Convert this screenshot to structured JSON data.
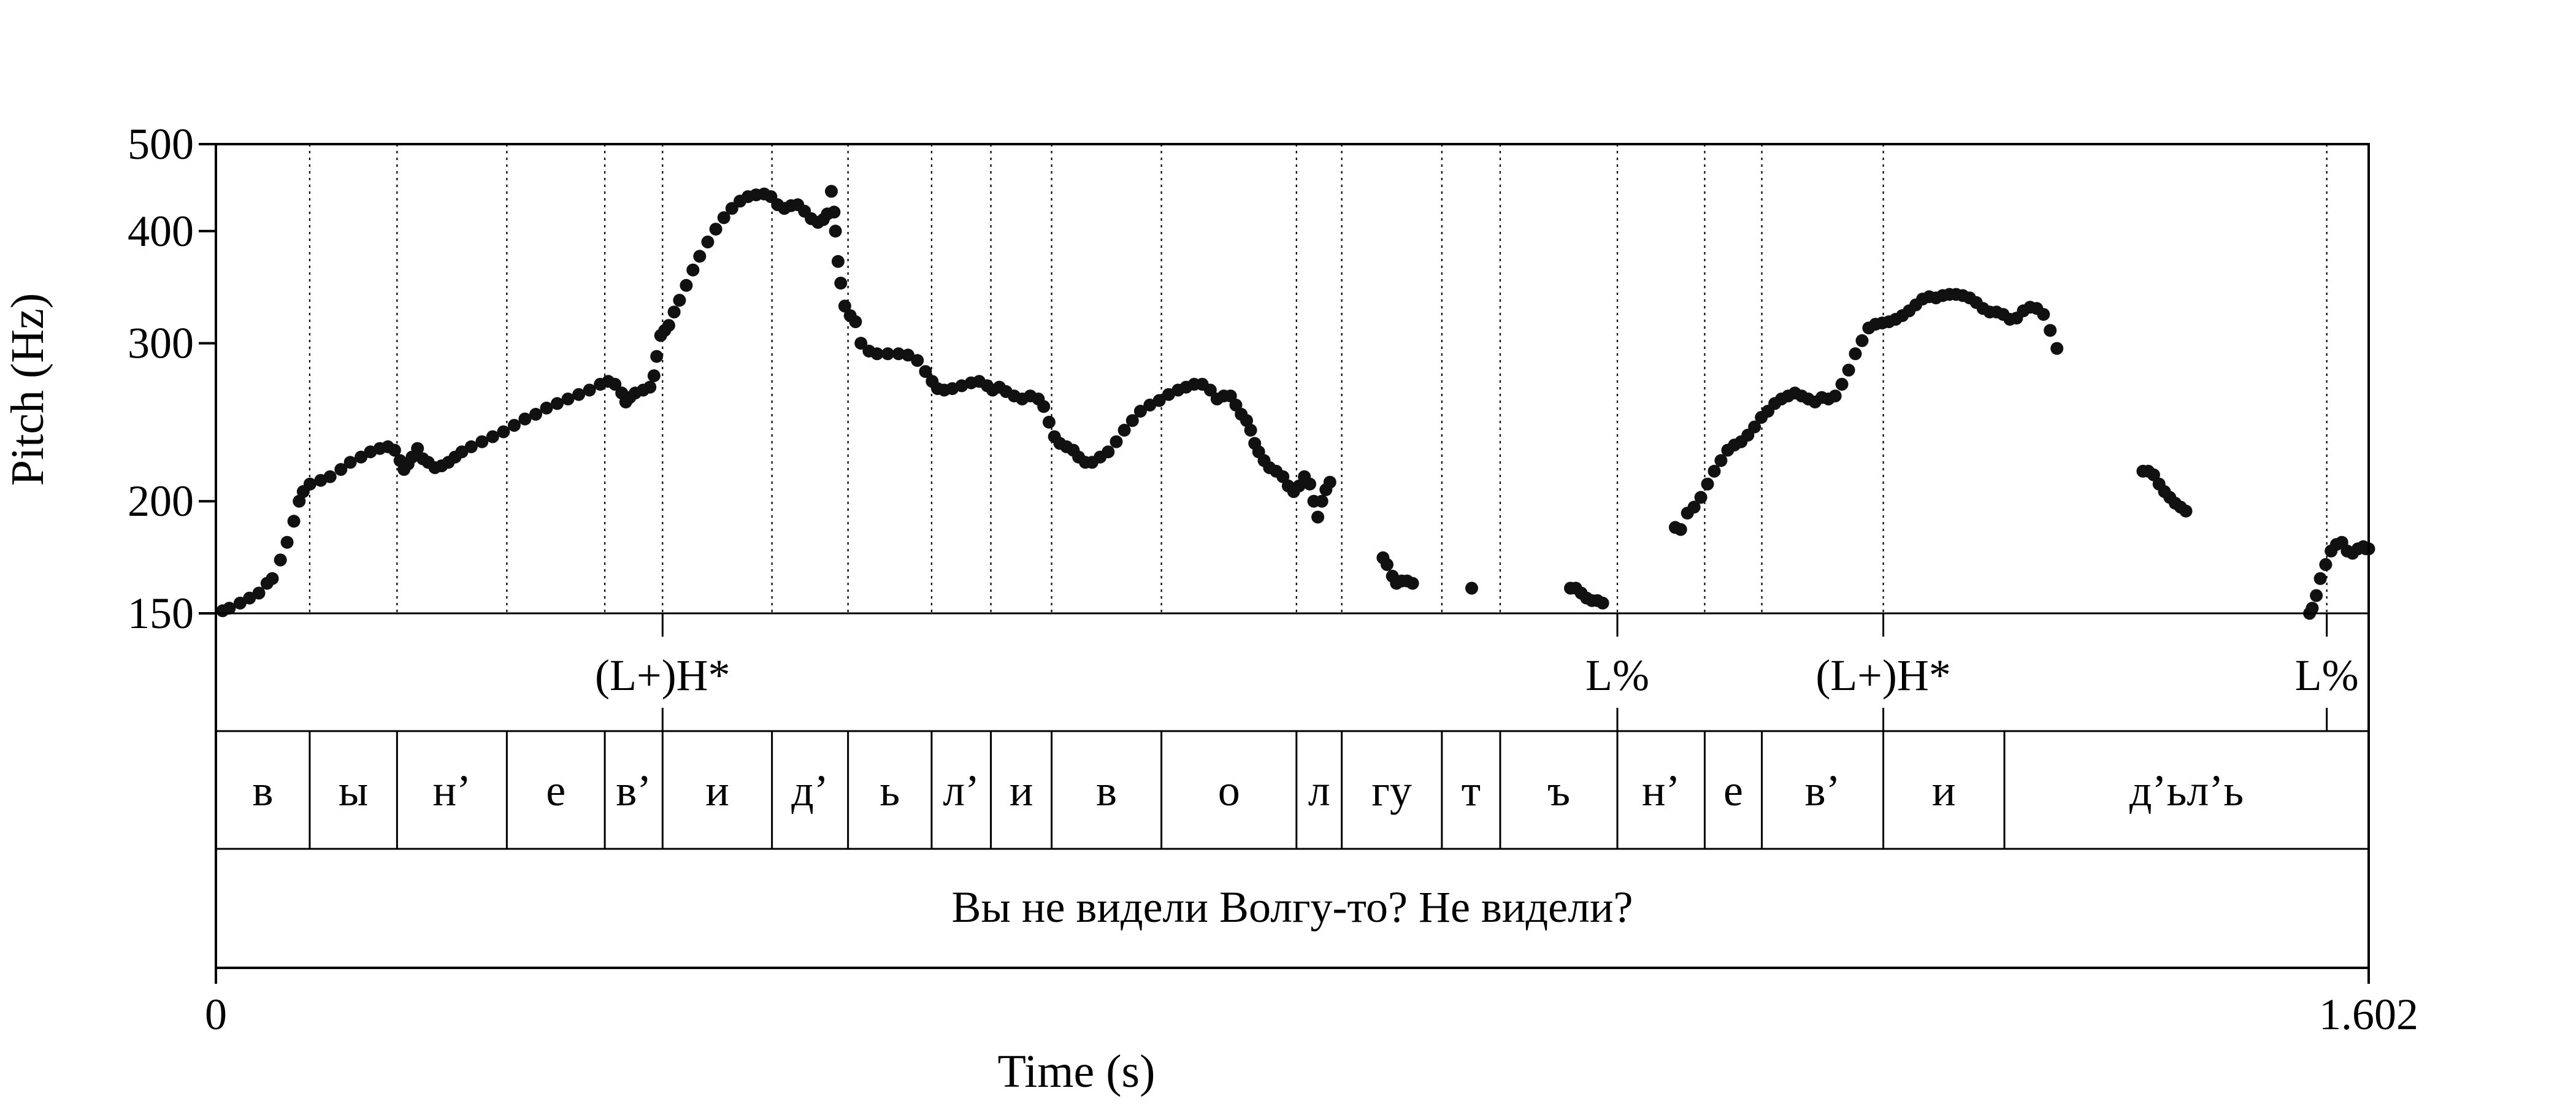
{
  "chart_data": {
    "type": "scatter",
    "title": "",
    "xlabel": "Time (s)",
    "ylabel": "Pitch (Hz)",
    "xlim": [
      0,
      1.602
    ],
    "ylim": [
      150,
      500
    ],
    "y_scale": "log",
    "grid": false,
    "x_ticks": [
      {
        "value": 0,
        "label": "0"
      },
      {
        "value": 1.602,
        "label": "1.602"
      }
    ],
    "y_ticks": [
      {
        "value": 150,
        "label": "150"
      },
      {
        "value": 200,
        "label": "200"
      },
      {
        "value": 300,
        "label": "300"
      },
      {
        "value": 400,
        "label": "400"
      },
      {
        "value": 500,
        "label": "500"
      }
    ],
    "colors": {
      "points": "#111111",
      "boundaries": "#000000"
    },
    "boundaries": [
      0,
      0.0698,
      0.1348,
      0.2165,
      0.2894,
      0.3324,
      0.4138,
      0.4704,
      0.5326,
      0.5767,
      0.6219,
      0.7036,
      0.8041,
      0.8378,
      0.9123,
      0.9557,
      1.0429,
      1.1079,
      1.1504,
      1.2408,
      1.5708,
      1.602
    ],
    "tones": [
      {
        "label": "(L+)H*",
        "time": 0.3324
      },
      {
        "label": "L%",
        "time": 1.0429
      },
      {
        "label": "(L+)H*",
        "time": 1.2408
      },
      {
        "label": "L%",
        "time": 1.5708
      }
    ],
    "phones": [
      {
        "label": "в",
        "start": 0,
        "end": 0.0698
      },
      {
        "label": "ы",
        "start": 0.0698,
        "end": 0.1348
      },
      {
        "label": "н’",
        "start": 0.1348,
        "end": 0.2165
      },
      {
        "label": "е",
        "start": 0.2165,
        "end": 0.2894
      },
      {
        "label": "в’",
        "start": 0.2894,
        "end": 0.3324
      },
      {
        "label": "и",
        "start": 0.3324,
        "end": 0.4138
      },
      {
        "label": "д’",
        "start": 0.4138,
        "end": 0.4704
      },
      {
        "label": "ь",
        "start": 0.4704,
        "end": 0.5326
      },
      {
        "label": "л’",
        "start": 0.5326,
        "end": 0.5767
      },
      {
        "label": "и",
        "start": 0.5767,
        "end": 0.6219
      },
      {
        "label": "в",
        "start": 0.6219,
        "end": 0.7036
      },
      {
        "label": "о",
        "start": 0.7036,
        "end": 0.8041
      },
      {
        "label": "л",
        "start": 0.8041,
        "end": 0.8378
      },
      {
        "label": "гу",
        "start": 0.8378,
        "end": 0.9123
      },
      {
        "label": "т",
        "start": 0.9123,
        "end": 0.9557
      },
      {
        "label": "ъ",
        "start": 0.9557,
        "end": 1.0429
      },
      {
        "label": "н’",
        "start": 1.0429,
        "end": 1.1079
      },
      {
        "label": "е",
        "start": 1.1079,
        "end": 1.1504
      },
      {
        "label": "в’",
        "start": 1.1504,
        "end": 1.2408
      },
      {
        "label": "и",
        "start": 1.2408,
        "end": 1.3309
      },
      {
        "label": "д’ьл’ь",
        "start": 1.3309,
        "end": 1.602
      }
    ],
    "sentence": "Вы не видели Волгу-то? Не видели?",
    "contour": [
      [
        [
          0.005,
          151
        ],
        [
          0.01,
          152
        ],
        [
          0.018,
          154
        ],
        [
          0.025,
          156
        ],
        [
          0.032,
          158
        ],
        [
          0.038,
          162
        ],
        [
          0.042,
          164
        ],
        [
          0.048,
          172
        ],
        [
          0.053,
          180
        ],
        [
          0.058,
          190
        ],
        [
          0.062,
          200
        ],
        [
          0.065,
          205
        ],
        [
          0.07,
          209
        ],
        [
          0.078,
          211
        ],
        [
          0.085,
          213
        ],
        [
          0.093,
          217
        ],
        [
          0.1,
          221
        ],
        [
          0.108,
          224
        ],
        [
          0.115,
          227
        ],
        [
          0.122,
          229
        ],
        [
          0.128,
          230
        ],
        [
          0.133,
          228
        ],
        [
          0.137,
          222
        ],
        [
          0.14,
          217
        ],
        [
          0.143,
          220
        ],
        [
          0.146,
          224
        ],
        [
          0.15,
          229
        ],
        [
          0.154,
          223
        ],
        [
          0.158,
          221
        ],
        [
          0.163,
          218
        ],
        [
          0.168,
          219
        ],
        [
          0.173,
          221
        ],
        [
          0.178,
          224
        ],
        [
          0.183,
          227
        ],
        [
          0.19,
          230
        ],
        [
          0.198,
          233
        ],
        [
          0.206,
          236
        ],
        [
          0.214,
          239
        ],
        [
          0.222,
          243
        ],
        [
          0.23,
          247
        ],
        [
          0.238,
          250
        ],
        [
          0.246,
          254
        ],
        [
          0.254,
          257
        ],
        [
          0.262,
          260
        ],
        [
          0.27,
          263
        ],
        [
          0.278,
          266
        ],
        [
          0.286,
          270
        ],
        [
          0.292,
          272
        ],
        [
          0.297,
          270
        ],
        [
          0.302,
          264
        ],
        [
          0.305,
          258
        ],
        [
          0.308,
          261
        ],
        [
          0.312,
          264
        ],
        [
          0.318,
          266
        ],
        [
          0.323,
          268
        ],
        [
          0.326,
          276
        ],
        [
          0.328,
          290
        ],
        [
          0.331,
          306
        ],
        [
          0.334,
          310
        ],
        [
          0.337,
          314
        ],
        [
          0.341,
          325
        ],
        [
          0.345,
          335
        ],
        [
          0.35,
          348
        ],
        [
          0.355,
          362
        ],
        [
          0.36,
          375
        ],
        [
          0.366,
          389
        ],
        [
          0.372,
          402
        ],
        [
          0.378,
          414
        ],
        [
          0.384,
          424
        ],
        [
          0.39,
          432
        ],
        [
          0.396,
          437
        ],
        [
          0.402,
          439
        ],
        [
          0.408,
          440
        ],
        [
          0.413,
          437
        ],
        [
          0.418,
          428
        ],
        [
          0.423,
          424
        ],
        [
          0.428,
          427
        ],
        [
          0.433,
          428
        ],
        [
          0.438,
          421
        ],
        [
          0.443,
          413
        ],
        [
          0.448,
          409
        ],
        [
          0.452,
          412
        ],
        [
          0.455,
          418
        ],
        [
          0.458,
          443
        ],
        [
          0.46,
          420
        ],
        [
          0.461,
          400
        ],
        [
          0.463,
          370
        ],
        [
          0.465,
          350
        ],
        [
          0.468,
          330
        ],
        [
          0.472,
          322
        ],
        [
          0.476,
          317
        ],
        [
          0.48,
          300
        ],
        [
          0.486,
          294
        ],
        [
          0.492,
          292
        ],
        [
          0.5,
          292
        ],
        [
          0.508,
          292
        ],
        [
          0.515,
          291
        ],
        [
          0.522,
          287
        ],
        [
          0.528,
          279
        ],
        [
          0.533,
          272
        ],
        [
          0.537,
          267
        ],
        [
          0.542,
          266
        ],
        [
          0.548,
          267
        ],
        [
          0.555,
          269
        ],
        [
          0.562,
          271
        ],
        [
          0.568,
          272
        ],
        [
          0.574,
          269
        ],
        [
          0.578,
          266
        ],
        [
          0.583,
          268
        ],
        [
          0.588,
          265
        ],
        [
          0.594,
          262
        ],
        [
          0.6,
          260
        ],
        [
          0.606,
          262
        ],
        [
          0.612,
          260
        ],
        [
          0.616,
          255
        ],
        [
          0.62,
          245
        ],
        [
          0.624,
          236
        ],
        [
          0.628,
          232
        ],
        [
          0.633,
          230
        ],
        [
          0.638,
          228
        ],
        [
          0.642,
          224
        ],
        [
          0.647,
          221
        ],
        [
          0.652,
          221
        ],
        [
          0.658,
          224
        ],
        [
          0.664,
          227
        ],
        [
          0.67,
          233
        ],
        [
          0.676,
          240
        ],
        [
          0.682,
          246
        ],
        [
          0.688,
          252
        ],
        [
          0.695,
          256
        ],
        [
          0.702,
          259
        ],
        [
          0.709,
          263
        ],
        [
          0.716,
          266
        ],
        [
          0.722,
          268
        ],
        [
          0.728,
          270
        ],
        [
          0.734,
          270
        ],
        [
          0.74,
          266
        ],
        [
          0.745,
          260
        ],
        [
          0.75,
          262
        ],
        [
          0.755,
          262
        ],
        [
          0.759,
          256
        ],
        [
          0.763,
          250
        ],
        [
          0.767,
          246
        ],
        [
          0.77,
          240
        ],
        [
          0.773,
          232
        ],
        [
          0.776,
          227
        ],
        [
          0.78,
          222
        ],
        [
          0.784,
          218
        ],
        [
          0.789,
          216
        ],
        [
          0.794,
          213
        ],
        [
          0.798,
          208
        ],
        [
          0.802,
          205
        ],
        [
          0.806,
          208
        ],
        [
          0.81,
          213
        ],
        [
          0.814,
          209
        ],
        [
          0.817,
          200
        ],
        [
          0.82,
          192
        ],
        [
          0.823,
          200
        ],
        [
          0.826,
          206
        ],
        [
          0.829,
          210
        ]
      ],
      [
        [
          0.8685,
          173
        ],
        [
          0.8715,
          170
        ],
        [
          0.8755,
          165
        ],
        [
          0.8785,
          162
        ],
        [
          0.8825,
          163
        ],
        [
          0.8865,
          163
        ],
        [
          0.8905,
          162
        ],
        [
          0.9345,
          160
        ]
      ],
      [
        [
          1.008,
          160
        ],
        [
          1.012,
          160
        ],
        [
          1.016,
          158
        ],
        [
          1.02,
          156
        ],
        [
          1.024,
          155
        ],
        [
          1.028,
          155
        ],
        [
          1.032,
          154
        ]
      ],
      [
        [
          1.086,
          187
        ],
        [
          1.09,
          186
        ],
        [
          1.095,
          194
        ],
        [
          1.1,
          197
        ],
        [
          1.105,
          202
        ],
        [
          1.11,
          209
        ],
        [
          1.115,
          216
        ],
        [
          1.12,
          222
        ],
        [
          1.125,
          228
        ],
        [
          1.13,
          231
        ],
        [
          1.135,
          233
        ],
        [
          1.14,
          237
        ],
        [
          1.145,
          242
        ],
        [
          1.15,
          248
        ],
        [
          1.155,
          252
        ],
        [
          1.16,
          257
        ],
        [
          1.165,
          260
        ],
        [
          1.17,
          262
        ],
        [
          1.175,
          264
        ],
        [
          1.18,
          262
        ],
        [
          1.185,
          260
        ],
        [
          1.19,
          258
        ],
        [
          1.195,
          261
        ],
        [
          1.2,
          260
        ],
        [
          1.205,
          262
        ],
        [
          1.21,
          270
        ],
        [
          1.215,
          280
        ],
        [
          1.22,
          292
        ],
        [
          1.225,
          302
        ],
        [
          1.23,
          312
        ],
        [
          1.235,
          315
        ],
        [
          1.24,
          316
        ],
        [
          1.245,
          317
        ],
        [
          1.25,
          319
        ],
        [
          1.255,
          322
        ],
        [
          1.26,
          326
        ],
        [
          1.265,
          331
        ],
        [
          1.27,
          336
        ],
        [
          1.275,
          338
        ],
        [
          1.28,
          337
        ],
        [
          1.285,
          339
        ],
        [
          1.29,
          340
        ],
        [
          1.295,
          340
        ],
        [
          1.3,
          339
        ],
        [
          1.305,
          337
        ],
        [
          1.31,
          333
        ],
        [
          1.315,
          328
        ],
        [
          1.32,
          325
        ],
        [
          1.325,
          325
        ],
        [
          1.33,
          323
        ],
        [
          1.335,
          319
        ],
        [
          1.34,
          320
        ],
        [
          1.345,
          326
        ],
        [
          1.35,
          329
        ],
        [
          1.355,
          328
        ],
        [
          1.36,
          323
        ],
        [
          1.365,
          310
        ],
        [
          1.37,
          296
        ]
      ],
      [
        [
          1.434,
          216
        ],
        [
          1.438,
          216
        ],
        [
          1.442,
          214
        ],
        [
          1.446,
          209
        ],
        [
          1.45,
          205
        ],
        [
          1.454,
          202
        ],
        [
          1.458,
          199
        ],
        [
          1.462,
          197
        ],
        [
          1.466,
          195
        ]
      ],
      [
        [
          1.558,
          150
        ],
        [
          1.56,
          152
        ],
        [
          1.563,
          157
        ],
        [
          1.566,
          164
        ],
        [
          1.57,
          170
        ],
        [
          1.574,
          176
        ],
        [
          1.578,
          179
        ],
        [
          1.582,
          180
        ],
        [
          1.586,
          176
        ],
        [
          1.59,
          175
        ],
        [
          1.594,
          177
        ],
        [
          1.598,
          178
        ],
        [
          1.6,
          177
        ],
        [
          1.602,
          177
        ]
      ]
    ]
  }
}
